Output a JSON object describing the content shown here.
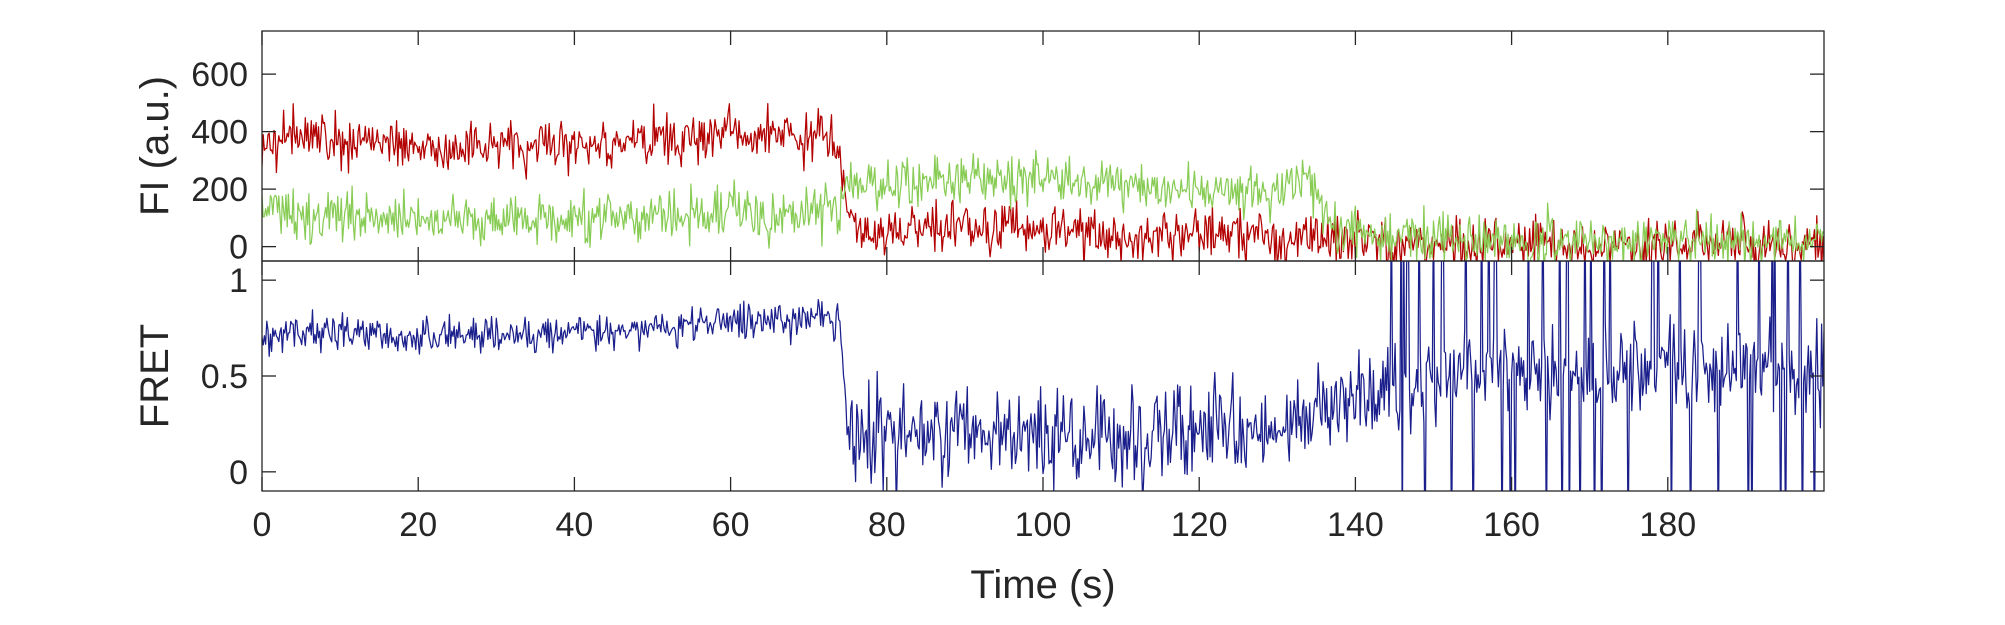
{
  "chart_data": [
    {
      "type": "line",
      "ylabel": "FI (a.u.)",
      "xlim": [
        0,
        200
      ],
      "ylim": [
        -50,
        750
      ],
      "yticks": [
        0,
        200,
        400,
        600
      ],
      "xticks_labeled": false,
      "grid": false,
      "legend": "none",
      "series": [
        {
          "color": "#b30000",
          "x": [
            0,
            10,
            20,
            30,
            40,
            50,
            60,
            70,
            74,
            75,
            80,
            90,
            100,
            110,
            120,
            130,
            140,
            150,
            160,
            170,
            180,
            190,
            200
          ],
          "values": [
            380,
            380,
            340,
            360,
            350,
            360,
            400,
            380,
            330,
            80,
            50,
            60,
            60,
            40,
            50,
            30,
            20,
            10,
            5,
            0,
            5,
            10,
            10
          ]
        },
        {
          "color": "#88cc55",
          "x": [
            0,
            10,
            20,
            30,
            40,
            50,
            60,
            70,
            74,
            75,
            80,
            90,
            100,
            110,
            120,
            130,
            134,
            138,
            140,
            150,
            160,
            170,
            180,
            190,
            200
          ],
          "values": [
            120,
            100,
            100,
            100,
            90,
            110,
            120,
            110,
            120,
            220,
            220,
            240,
            230,
            210,
            190,
            200,
            240,
            60,
            40,
            30,
            20,
            20,
            30,
            20,
            30
          ]
        }
      ]
    },
    {
      "type": "line",
      "xlabel": "Time (s)",
      "ylabel": "FRET",
      "xlim": [
        0,
        200
      ],
      "ylim": [
        -0.1,
        1.1
      ],
      "xticks": [
        0,
        20,
        40,
        60,
        80,
        100,
        120,
        140,
        160,
        180
      ],
      "yticks": [
        0,
        0.5,
        1
      ],
      "grid": false,
      "legend": "none",
      "series": [
        {
          "color": "#1a1f8c",
          "x": [
            0,
            10,
            20,
            30,
            40,
            50,
            60,
            70,
            74,
            75,
            80,
            90,
            100,
            110,
            120,
            130,
            140,
            150,
            160,
            170,
            180,
            190,
            200
          ],
          "values": [
            0.72,
            0.74,
            0.7,
            0.72,
            0.73,
            0.74,
            0.78,
            0.8,
            0.78,
            0.2,
            0.2,
            0.18,
            0.17,
            0.15,
            0.22,
            0.2,
            0.4,
            0.5,
            0.55,
            0.5,
            0.55,
            0.5,
            0.5
          ]
        }
      ]
    }
  ]
}
